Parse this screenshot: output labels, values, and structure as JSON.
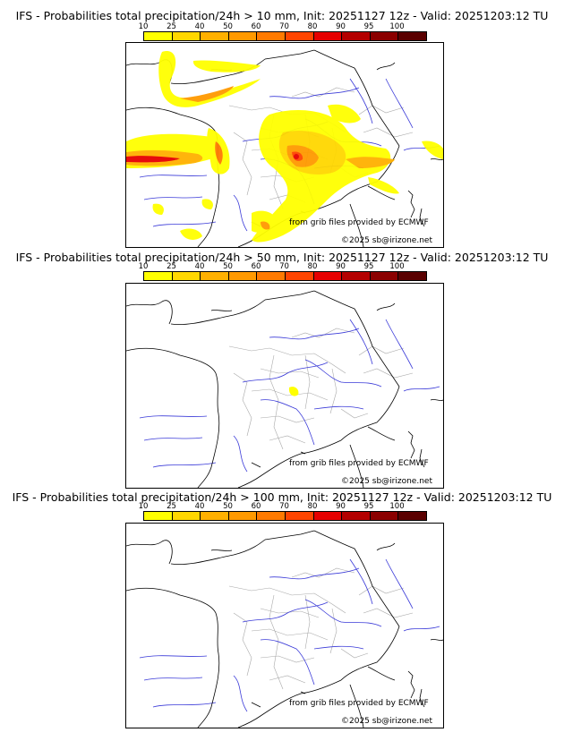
{
  "colorbar": {
    "ticks": [
      "10",
      "25",
      "40",
      "50",
      "60",
      "70",
      "80",
      "90",
      "95",
      "100"
    ],
    "colors": [
      "#ffff00",
      "#ffd700",
      "#ffb000",
      "#ff9900",
      "#ff7a00",
      "#ff4500",
      "#e60000",
      "#b40000",
      "#8b0000",
      "#5a0000"
    ]
  },
  "credits": {
    "source": "from grib files provided by ECMWF",
    "copyright": "©2025 sb@irizone.net"
  },
  "panels": [
    {
      "title": "IFS - Probabilities total precipitation/24h > 10 mm, Init: 20251127 12z - Valid: 20251203:12 TU"
    },
    {
      "title": "IFS - Probabilities total precipitation/24h > 50 mm, Init: 20251127 12z - Valid: 20251203:12 TU"
    },
    {
      "title": "IFS - Probabilities total precipitation/24h > 100 mm, Init: 20251127 12z - Valid: 20251203:12 TU"
    }
  ]
}
